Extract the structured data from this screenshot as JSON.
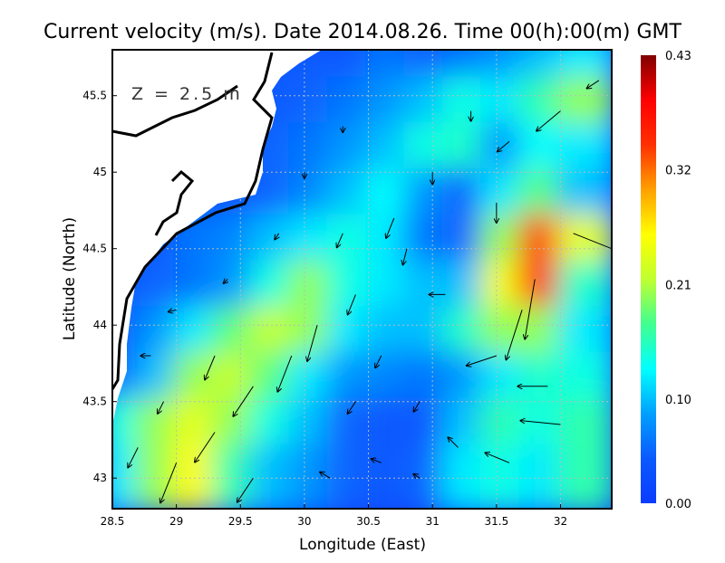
{
  "chart_data": {
    "type": "heatmap",
    "title": "Current velocity (m/s). Date 2014.08.26. Time 00(h):00(m) GMT",
    "xlabel": "Longitude (East)",
    "ylabel": "Latitude (North)",
    "annotation": "Z = 2.5 m",
    "xlim": [
      28.5,
      32.4
    ],
    "ylim": [
      42.8,
      45.8
    ],
    "xticks": [
      "28.5",
      "29",
      "29.5",
      "30",
      "30.5",
      "31",
      "31.5",
      "32"
    ],
    "yticks": [
      "43",
      "43.5",
      "44",
      "44.5",
      "45",
      "45.5"
    ],
    "grid": true,
    "colorbar": {
      "range": [
        0.0,
        0.43
      ],
      "ticks": [
        "0.00",
        "0.10",
        "0.21",
        "0.32",
        "0.43"
      ],
      "colors": [
        "#0a3cff",
        "#0a5aff",
        "#00a0ff",
        "#00ffff",
        "#40ff90",
        "#c0ff30",
        "#ffff00",
        "#ffa000",
        "#ff3000",
        "#ff0000",
        "#800000"
      ]
    },
    "speed_grid": {
      "lon": [
        28.6,
        28.9,
        29.2,
        29.5,
        29.8,
        30.1,
        30.4,
        30.7,
        31.0,
        31.3,
        31.6,
        31.9,
        32.2
      ],
      "lat": [
        45.7,
        45.4,
        45.1,
        44.8,
        44.5,
        44.2,
        43.9,
        43.6,
        43.3,
        43.0
      ],
      "values": [
        [
          null,
          null,
          null,
          null,
          null,
          0.04,
          0.04,
          0.06,
          0.05,
          0.06,
          0.08,
          0.1,
          0.12
        ],
        [
          null,
          null,
          null,
          null,
          null,
          0.05,
          0.06,
          0.08,
          0.1,
          0.14,
          0.12,
          0.16,
          0.2
        ],
        [
          null,
          null,
          null,
          null,
          0.05,
          0.06,
          0.08,
          0.1,
          0.14,
          0.15,
          0.08,
          0.13,
          0.12
        ],
        [
          null,
          null,
          null,
          0.03,
          0.05,
          0.07,
          0.1,
          0.13,
          0.08,
          0.05,
          0.12,
          0.18,
          0.1
        ],
        [
          null,
          0.04,
          0.06,
          0.07,
          0.1,
          0.12,
          0.14,
          0.12,
          0.06,
          0.05,
          0.2,
          0.35,
          0.24
        ],
        [
          null,
          0.05,
          0.06,
          0.08,
          0.14,
          0.2,
          0.14,
          0.12,
          0.1,
          0.1,
          0.25,
          0.38,
          0.15
        ],
        [
          0.04,
          0.08,
          0.12,
          0.18,
          0.22,
          0.2,
          0.12,
          0.1,
          0.1,
          0.15,
          0.2,
          0.2,
          0.12
        ],
        [
          0.05,
          0.1,
          0.2,
          0.22,
          0.18,
          0.12,
          0.08,
          0.07,
          0.06,
          0.08,
          0.12,
          0.15,
          0.14
        ],
        [
          0.14,
          0.2,
          0.24,
          0.2,
          0.14,
          0.1,
          0.05,
          0.04,
          0.04,
          0.1,
          0.16,
          0.14,
          0.16
        ],
        [
          0.12,
          0.2,
          0.26,
          0.16,
          0.1,
          0.08,
          0.05,
          0.04,
          0.05,
          0.12,
          0.14,
          0.12,
          0.16
        ]
      ]
    },
    "vectors": [
      [
        29.0,
        43.1,
        -0.08,
        -0.2
      ],
      [
        29.3,
        43.3,
        -0.1,
        -0.15
      ],
      [
        29.6,
        43.6,
        -0.1,
        -0.15
      ],
      [
        29.9,
        43.8,
        -0.07,
        -0.18
      ],
      [
        30.1,
        44.0,
        -0.05,
        -0.18
      ],
      [
        29.3,
        43.8,
        -0.05,
        -0.12
      ],
      [
        28.7,
        43.2,
        -0.05,
        -0.1
      ],
      [
        30.4,
        44.2,
        -0.04,
        -0.1
      ],
      [
        30.8,
        44.5,
        -0.02,
        -0.08
      ],
      [
        30.7,
        44.7,
        -0.04,
        -0.1
      ],
      [
        31.0,
        45.0,
        0.0,
        -0.06
      ],
      [
        31.8,
        44.3,
        -0.05,
        -0.3
      ],
      [
        31.7,
        44.1,
        -0.08,
        -0.25
      ],
      [
        32.1,
        44.6,
        0.25,
        -0.1
      ],
      [
        31.5,
        43.8,
        -0.15,
        -0.05
      ],
      [
        31.9,
        43.6,
        -0.15,
        0.0
      ],
      [
        32.0,
        43.35,
        -0.2,
        0.02
      ],
      [
        31.6,
        43.1,
        -0.12,
        0.05
      ],
      [
        31.2,
        43.2,
        -0.05,
        0.05
      ],
      [
        30.6,
        43.1,
        -0.05,
        0.02
      ],
      [
        30.2,
        43.0,
        -0.05,
        0.03
      ],
      [
        31.6,
        45.2,
        -0.06,
        -0.05
      ],
      [
        32.0,
        45.4,
        -0.12,
        -0.1
      ],
      [
        32.3,
        45.6,
        -0.06,
        -0.04
      ],
      [
        31.3,
        45.4,
        0.0,
        -0.05
      ],
      [
        30.3,
        45.3,
        0.0,
        -0.03
      ],
      [
        30.0,
        45.0,
        0.0,
        -0.03
      ],
      [
        29.8,
        44.6,
        -0.02,
        -0.03
      ],
      [
        29.4,
        44.3,
        -0.02,
        -0.02
      ],
      [
        29.0,
        44.1,
        -0.04,
        -0.01
      ],
      [
        28.8,
        43.8,
        -0.05,
        0.0
      ],
      [
        28.9,
        43.5,
        -0.03,
        -0.06
      ],
      [
        30.6,
        43.8,
        -0.03,
        -0.06
      ],
      [
        31.1,
        44.2,
        -0.08,
        0.0
      ],
      [
        30.9,
        43.5,
        -0.03,
        -0.05
      ],
      [
        31.5,
        44.8,
        0.0,
        -0.1
      ],
      [
        30.4,
        43.5,
        -0.04,
        -0.06
      ],
      [
        30.9,
        43.0,
        -0.03,
        0.02
      ],
      [
        29.6,
        43.0,
        -0.08,
        -0.12
      ],
      [
        30.3,
        44.6,
        -0.03,
        -0.07
      ]
    ]
  }
}
